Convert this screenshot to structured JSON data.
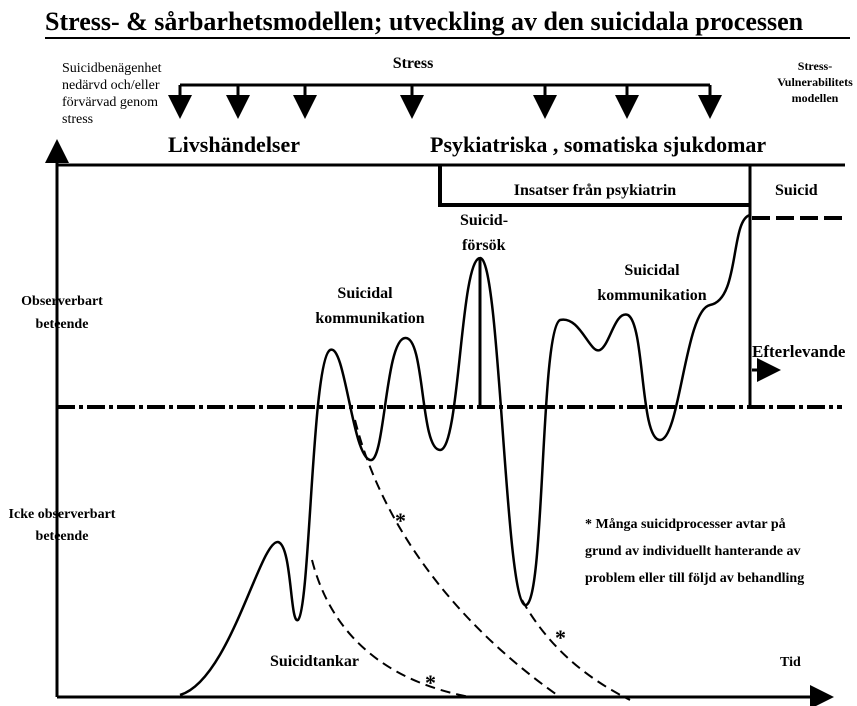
{
  "title": "Stress- & sårbarhetsmodellen; utveckling av den suicidala processen",
  "predisposition": [
    "Suicidbenägenhet",
    "nedärvd och/eller",
    "förvärvad genom",
    "stress"
  ],
  "stress": "Stress",
  "model": [
    "Stress-",
    "Vulnerabilitets",
    "modellen"
  ],
  "life_events": "Livshändelser",
  "illness": "Psykiatriska , somatiska sjukdomar",
  "psychiatry": "Insatser från psykiatrin",
  "suicide": "Suicid",
  "attempt": [
    "Suicid-",
    "försök"
  ],
  "communication_1": [
    "Suicidal",
    "kommunikation"
  ],
  "communication_2": [
    "Suicidal",
    "kommunikation"
  ],
  "observable": [
    "Observerbart",
    "beteende"
  ],
  "unobservable": [
    "Icke observerbart",
    "beteende"
  ],
  "survivors": "Efterlevande",
  "asterisks": [
    "*",
    "*",
    "*"
  ],
  "note": [
    "* Många suicidprocesser  avtar på",
    "grund av individuellt hanterande av",
    "problem eller till följd av behandling"
  ],
  "thoughts": "Suicidtankar",
  "time": "Tid"
}
